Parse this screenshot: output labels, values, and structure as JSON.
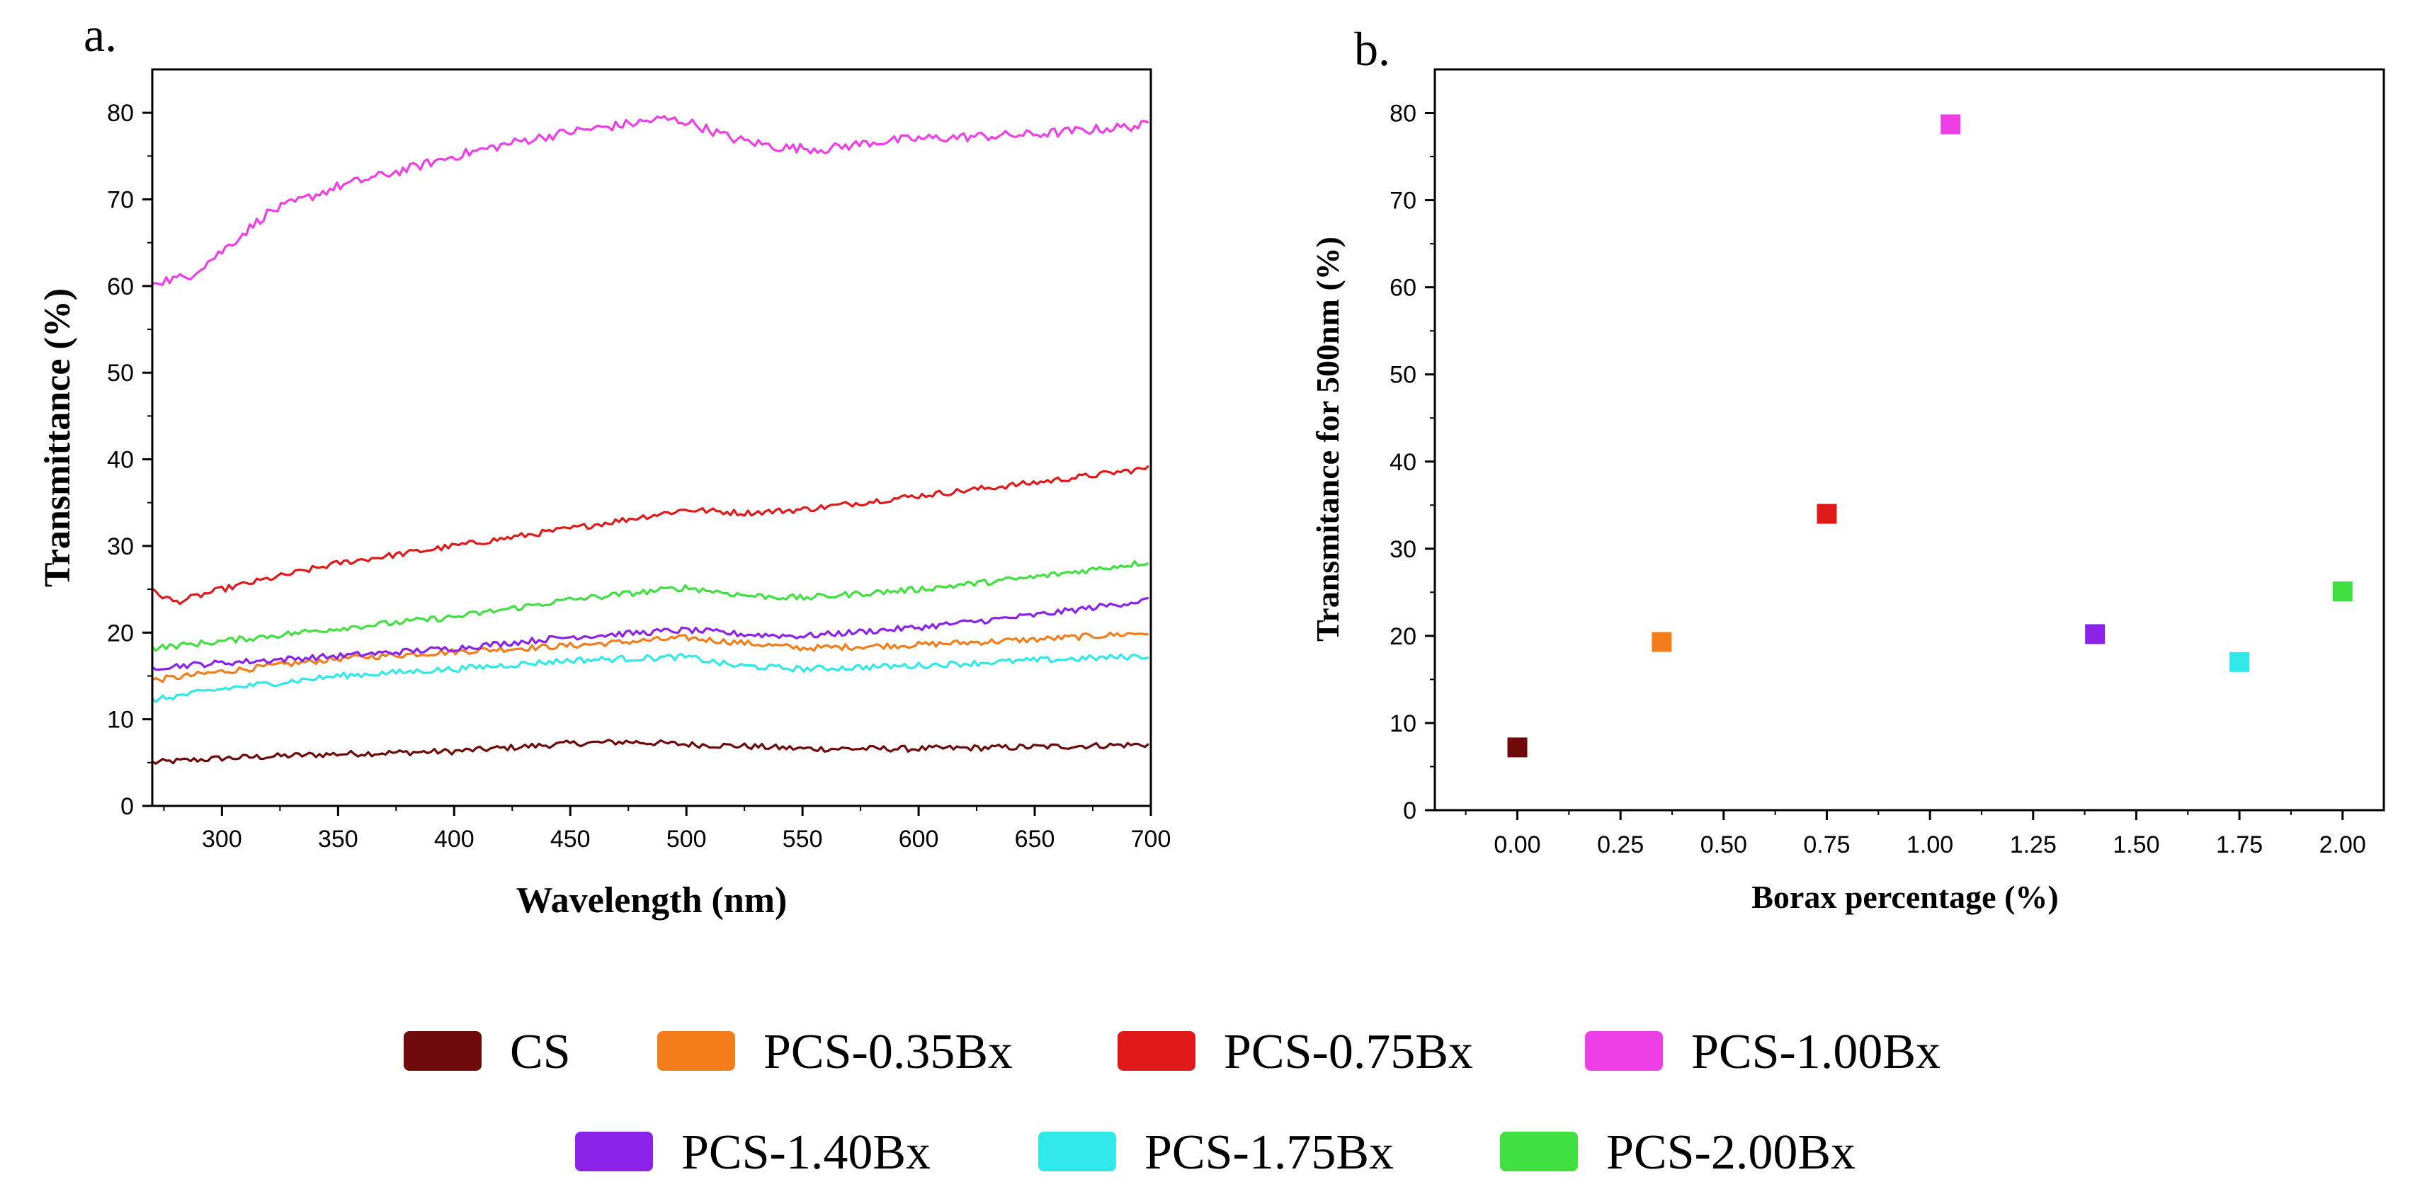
{
  "chart_data": [
    {
      "panel": "a.",
      "type": "line",
      "xlabel": "Wavelength (nm)",
      "ylabel": "Transmittance (%)",
      "xlim": [
        270,
        700
      ],
      "ylim": [
        0,
        85
      ],
      "xticks": [
        300,
        350,
        400,
        450,
        500,
        550,
        600,
        650,
        700
      ],
      "yticks": [
        0,
        10,
        20,
        30,
        40,
        50,
        60,
        70,
        80
      ],
      "series": [
        {
          "name": "CS",
          "color": "#6e0a0a",
          "x": [
            270,
            300,
            350,
            400,
            450,
            475,
            500,
            525,
            550,
            600,
            650,
            700
          ],
          "y": [
            5.0,
            5.5,
            6.0,
            6.3,
            7.2,
            7.4,
            7.1,
            6.9,
            6.6,
            6.6,
            6.8,
            7.1
          ]
        },
        {
          "name": "PCS-0.35Bx",
          "color": "#f27d1a",
          "x": [
            270,
            300,
            350,
            400,
            450,
            500,
            525,
            550,
            600,
            650,
            700
          ],
          "y": [
            14.5,
            15.5,
            17.0,
            17.8,
            18.5,
            19.4,
            18.8,
            18.2,
            18.6,
            19.2,
            20.0
          ]
        },
        {
          "name": "PCS-0.75Bx",
          "color": "#e01a1a",
          "x": [
            270,
            280,
            300,
            350,
            400,
            450,
            500,
            525,
            550,
            600,
            650,
            700
          ],
          "y": [
            24.8,
            23.5,
            25.0,
            28.0,
            30.0,
            32.0,
            34.2,
            33.8,
            34.2,
            35.8,
            37.3,
            39.0
          ]
        },
        {
          "name": "PCS-1.00Bx",
          "color": "#ee3ee6",
          "x": [
            270,
            285,
            300,
            320,
            350,
            380,
            400,
            430,
            450,
            470,
            490,
            500,
            520,
            540,
            560,
            580,
            600,
            650,
            700
          ],
          "y": [
            60.5,
            61.0,
            64.0,
            68.5,
            71.5,
            73.5,
            75.0,
            76.8,
            77.8,
            78.5,
            79.3,
            79.0,
            77.0,
            76.0,
            75.8,
            76.6,
            77.0,
            77.5,
            78.6
          ]
        },
        {
          "name": "PCS-1.40Bx",
          "color": "#8a22e8",
          "x": [
            270,
            300,
            350,
            400,
            450,
            500,
            525,
            550,
            600,
            650,
            700
          ],
          "y": [
            16.0,
            16.5,
            17.3,
            18.2,
            19.5,
            20.3,
            19.8,
            19.6,
            20.6,
            22.0,
            23.8
          ]
        },
        {
          "name": "PCS-1.75Bx",
          "color": "#31e8e8",
          "x": [
            270,
            300,
            350,
            400,
            450,
            500,
            520,
            550,
            600,
            650,
            700
          ],
          "y": [
            12.2,
            13.5,
            15.0,
            15.8,
            16.8,
            17.2,
            16.2,
            15.8,
            16.2,
            16.8,
            17.3
          ]
        },
        {
          "name": "PCS-2.00Bx",
          "color": "#40e040",
          "x": [
            270,
            300,
            350,
            400,
            450,
            500,
            525,
            550,
            600,
            650,
            700
          ],
          "y": [
            18.2,
            19.0,
            20.5,
            21.8,
            23.8,
            25.2,
            24.3,
            24.0,
            25.0,
            26.4,
            28.2
          ]
        }
      ]
    },
    {
      "panel": "b.",
      "type": "scatter",
      "xlabel": "Borax percentage (%)",
      "ylabel": "Transmitance for 500nm (%)",
      "xlim": [
        -0.2,
        2.1
      ],
      "ylim": [
        0,
        85
      ],
      "xticks": [
        "0.00",
        "0.25",
        "0.50",
        "0.75",
        "1.00",
        "1.25",
        "1.50",
        "1.75",
        "2.00"
      ],
      "yticks": [
        0,
        10,
        20,
        30,
        40,
        50,
        60,
        70,
        80
      ],
      "points": [
        {
          "name": "CS",
          "x": 0.0,
          "y": 7.2,
          "color": "#6e0a0a"
        },
        {
          "name": "PCS-0.35Bx",
          "x": 0.35,
          "y": 19.3,
          "color": "#f27d1a"
        },
        {
          "name": "PCS-0.75Bx",
          "x": 0.75,
          "y": 34.0,
          "color": "#e01a1a"
        },
        {
          "name": "PCS-1.00Bx",
          "x": 1.05,
          "y": 78.7,
          "color": "#ee3ee6"
        },
        {
          "name": "PCS-1.40Bx",
          "x": 1.4,
          "y": 20.2,
          "color": "#8a22e8"
        },
        {
          "name": "PCS-1.75Bx",
          "x": 1.75,
          "y": 17.0,
          "color": "#31e8e8"
        },
        {
          "name": "PCS-2.00Bx",
          "x": 2.0,
          "y": 25.1,
          "color": "#40e040"
        }
      ]
    }
  ],
  "legend": {
    "items": [
      {
        "label": "CS",
        "color": "#6e0a0a"
      },
      {
        "label": "PCS-0.35Bx",
        "color": "#f27d1a"
      },
      {
        "label": "PCS-0.75Bx",
        "color": "#e01a1a"
      },
      {
        "label": "PCS-1.00Bx",
        "color": "#ee3ee6"
      },
      {
        "label": "PCS-1.40Bx",
        "color": "#8a22e8"
      },
      {
        "label": "PCS-1.75Bx",
        "color": "#31e8e8"
      },
      {
        "label": "PCS-2.00Bx",
        "color": "#40e040"
      }
    ]
  }
}
